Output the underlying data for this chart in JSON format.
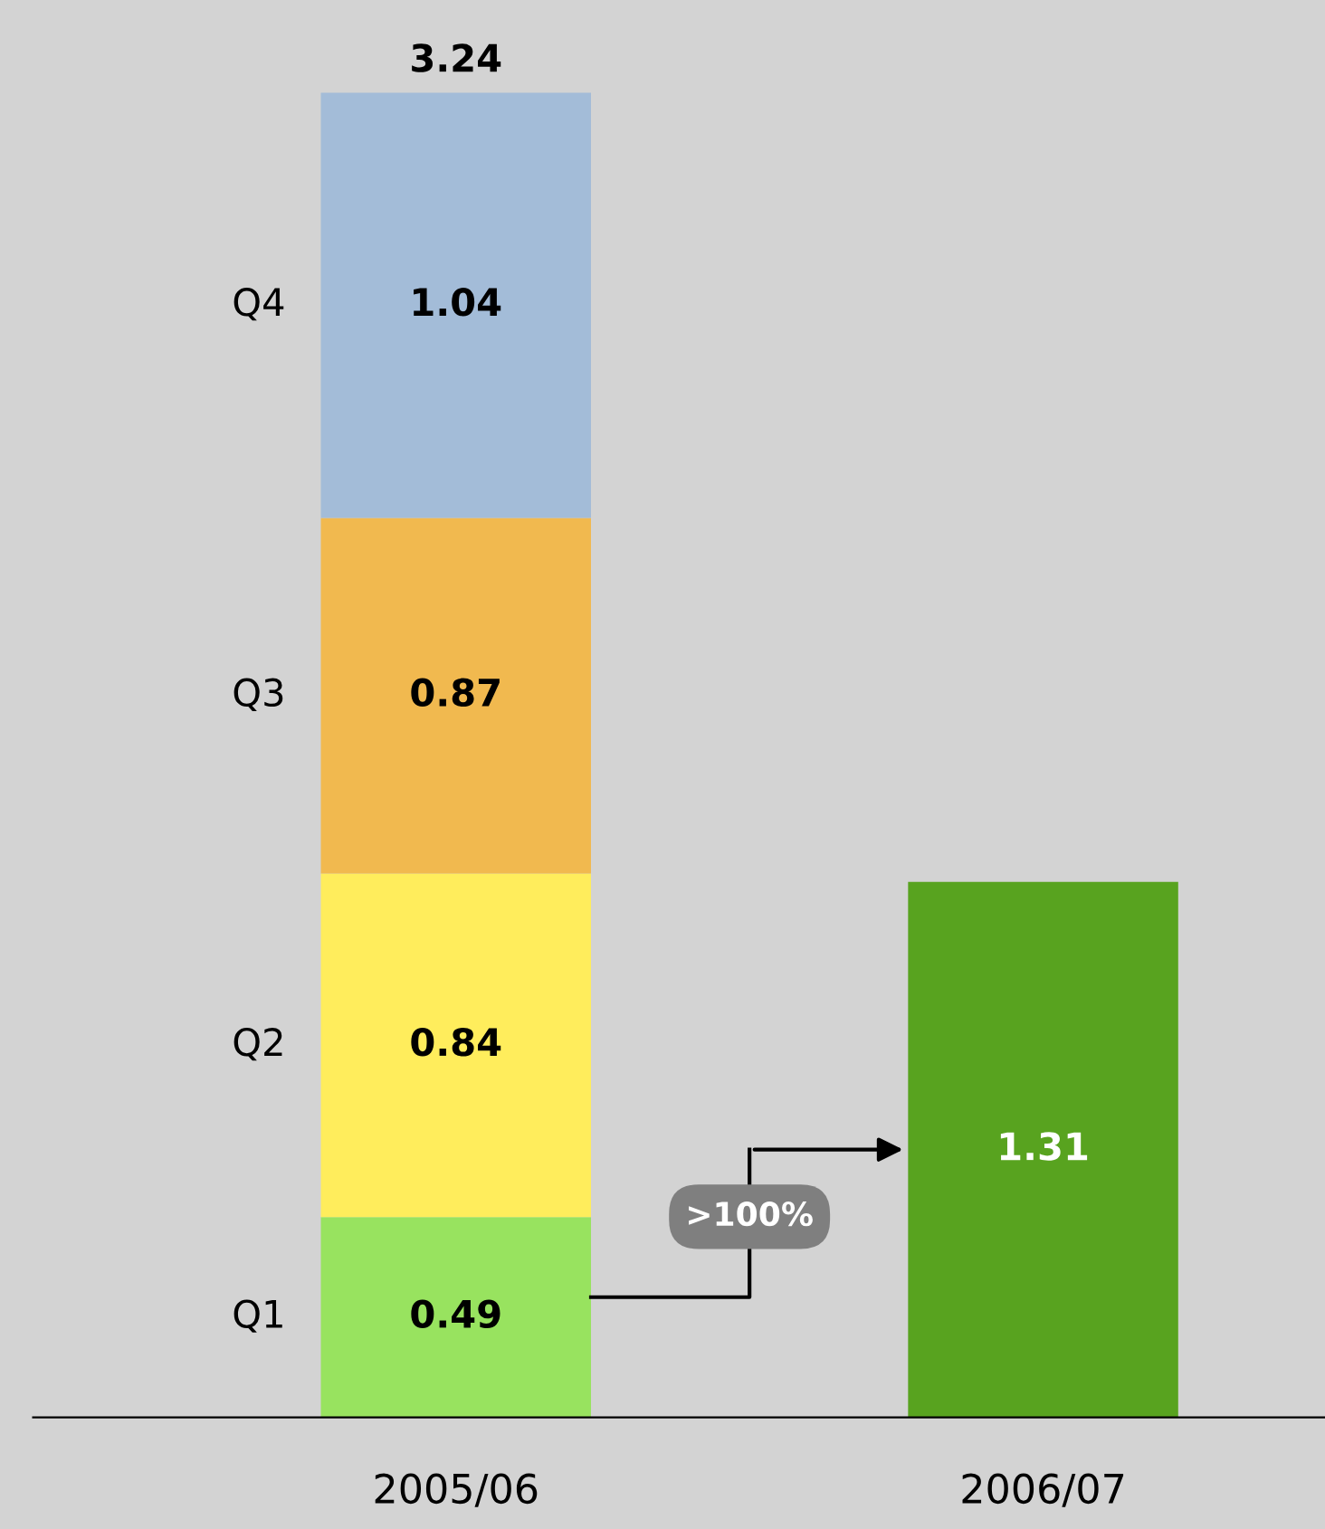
{
  "chart_data": {
    "type": "bar",
    "stacked": true,
    "categories": [
      "2005/06",
      "2006/07"
    ],
    "series": [
      {
        "name": "Q1",
        "colors": [
          "#98e35f",
          "#58a31f"
        ],
        "values": [
          0.49,
          1.31
        ]
      },
      {
        "name": "Q2",
        "color": "#ffed5c",
        "values": [
          0.84,
          null
        ]
      },
      {
        "name": "Q3",
        "color": "#f1b94f",
        "values": [
          0.87,
          null
        ]
      },
      {
        "name": "Q4",
        "color": "#a3bcd8",
        "values": [
          1.04,
          null
        ]
      }
    ],
    "data_labels": true,
    "totals": [
      "3.24",
      null
    ],
    "annotations": [
      ">100%"
    ],
    "legend": false,
    "grid": false
  }
}
